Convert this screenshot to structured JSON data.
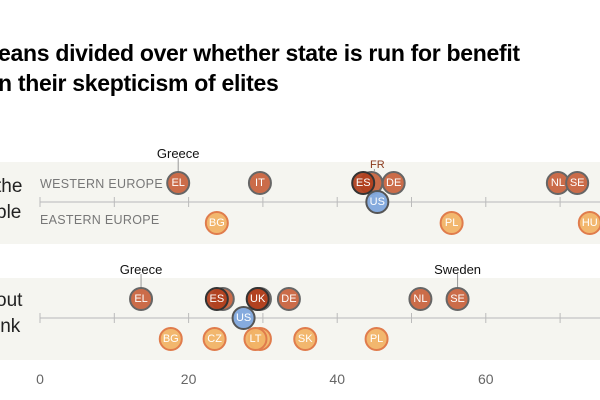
{
  "title_lines": [
    "eans divided over whether state is run for benefit",
    "n their skepticism of elites"
  ],
  "colors": {
    "western": "#c8643f",
    "western_dark": "#b0401f",
    "eastern": "#f1b366",
    "eastern_stroke": "#e07c4c",
    "us": "#7fa6dc",
    "panel_bg": "#f5f5f0"
  },
  "chart_data": {
    "type": "scatter",
    "xlim": [
      0,
      75
    ],
    "x_ticks": [
      0,
      20,
      40,
      60
    ],
    "panels": [
      {
        "label_lines": [
          "the",
          "ple"
        ],
        "callouts": [
          {
            "text": "Greece",
            "x": 18.6
          }
        ],
        "western_label": "WESTERN EUROPE",
        "eastern_label": "EASTERN EUROPE",
        "western": [
          {
            "code": "EL",
            "value": 18.6
          },
          {
            "code": "IT",
            "value": 29.6
          },
          {
            "code": "FR",
            "value": 44.6
          },
          {
            "code": "DE",
            "value": 47.6
          },
          {
            "code": "NL",
            "value": 69.7
          },
          {
            "code": "SE",
            "value": 72.3
          },
          {
            "code": "ES",
            "value": 43.5,
            "dark": true
          }
        ],
        "eastern": [
          {
            "code": "BG",
            "value": 23.8
          },
          {
            "code": "PL",
            "value": 55.4
          },
          {
            "code": "HU",
            "value": 74.0
          }
        ],
        "us": {
          "code": "US",
          "value": 45.4
        }
      },
      {
        "label_lines": [
          "out",
          "ink"
        ],
        "callouts": [
          {
            "text": "Greece",
            "x": 13.6
          },
          {
            "text": "Sweden",
            "x": 56.2
          }
        ],
        "western": [
          {
            "code": "EL",
            "value": 13.6
          },
          {
            "code": "",
            "value": 24.6
          },
          {
            "code": "ES",
            "value": 23.8,
            "dark": true
          },
          {
            "code": "",
            "value": 29.6
          },
          {
            "code": "UK",
            "value": 29.3,
            "dark": true
          },
          {
            "code": "DE",
            "value": 33.5
          },
          {
            "code": "NL",
            "value": 51.2
          },
          {
            "code": "SE",
            "value": 56.2
          }
        ],
        "eastern": [
          {
            "code": "BG",
            "value": 17.6
          },
          {
            "code": "CZ",
            "value": 23.5
          },
          {
            "code": "",
            "value": 29.6
          },
          {
            "code": "LT",
            "value": 29.0
          },
          {
            "code": "SK",
            "value": 35.7
          },
          {
            "code": "PL",
            "value": 45.3
          }
        ],
        "us": {
          "code": "US",
          "value": 27.4
        }
      }
    ]
  }
}
